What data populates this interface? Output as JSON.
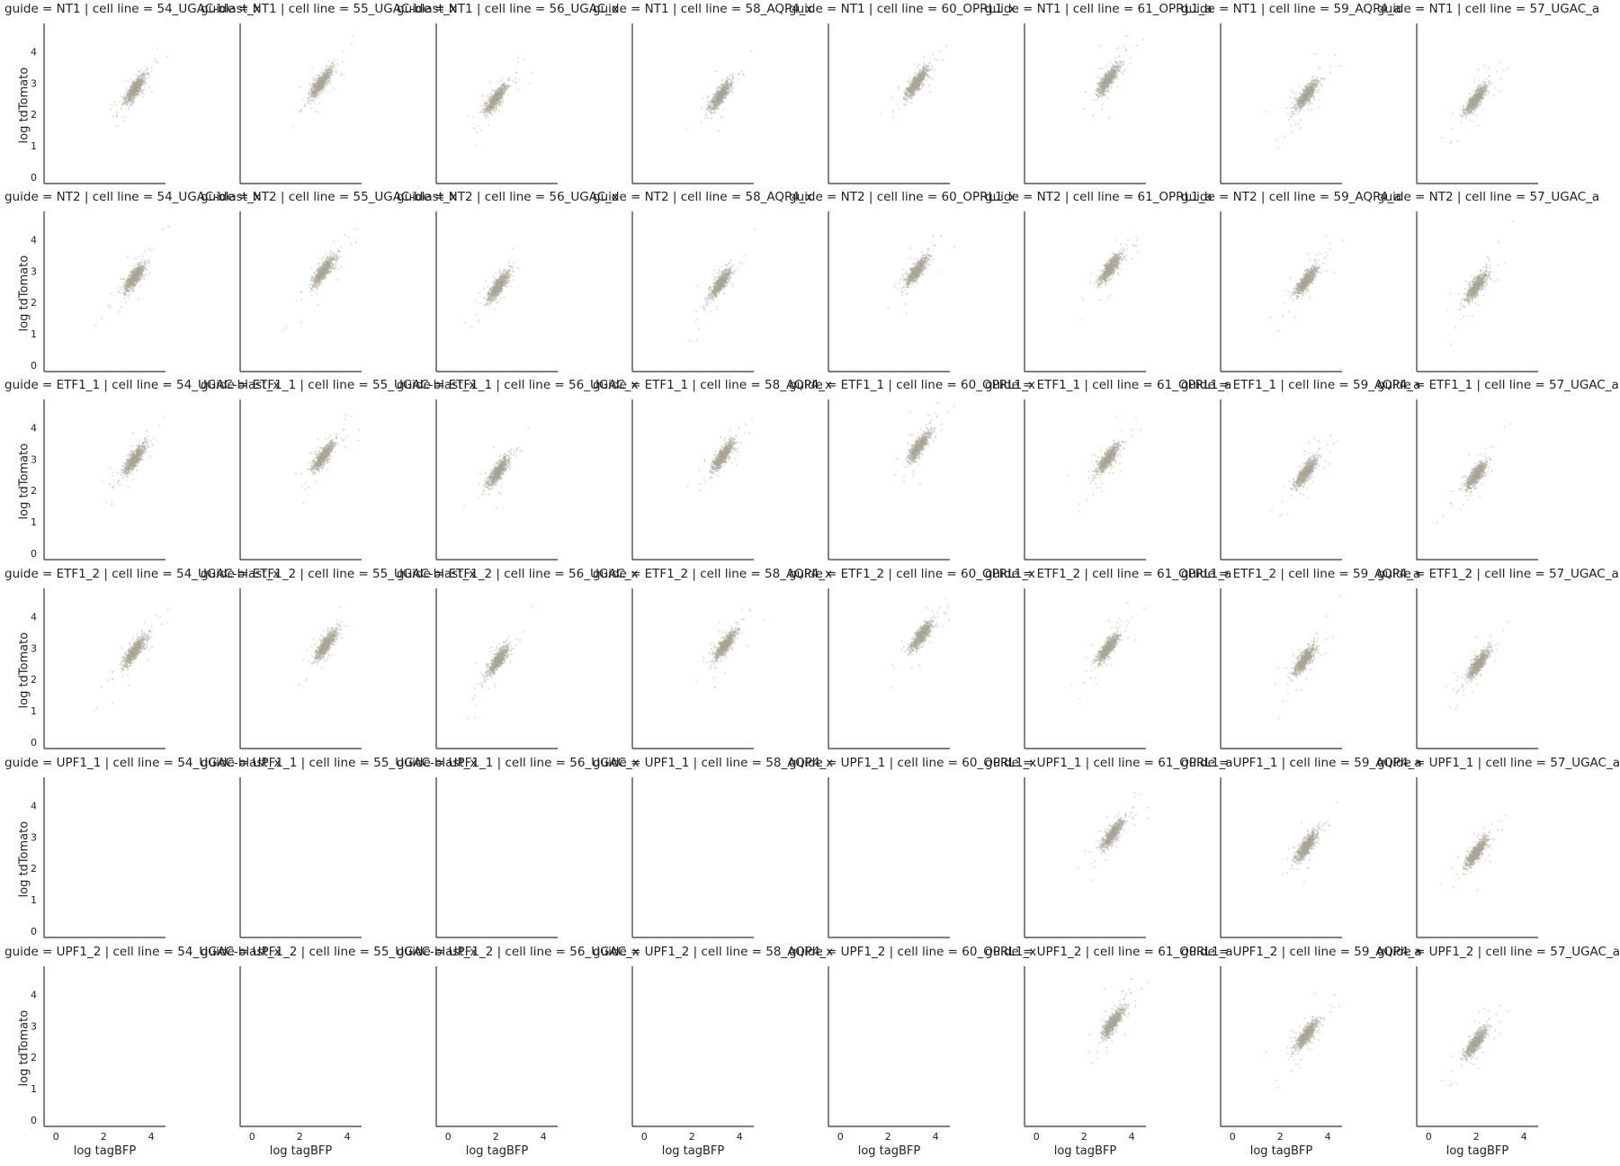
{
  "chart_data": {
    "type": "scatter",
    "row_facet": "guide",
    "col_facet": "cell line",
    "rows": [
      "NT1",
      "NT2",
      "ETF1_1",
      "ETF1_2",
      "UPF1_1",
      "UPF1_2"
    ],
    "cols": [
      "54_UGAC-blast_x",
      "55_UGAC-blast_x",
      "56_UGAC_x",
      "58_AQP4_x",
      "60_OPRL1_x",
      "61_OPRL1_a",
      "59_AQP4_a",
      "57_UGAC_a"
    ],
    "xlabel": "log tagBFP",
    "ylabel": "log tdTomato",
    "xlim": [
      -0.5,
      4.6
    ],
    "ylim": [
      -0.2,
      4.9
    ],
    "xticks": [
      0,
      2,
      4
    ],
    "yticks": [
      0,
      1,
      2,
      3,
      4
    ],
    "point_color": "#a8a597",
    "clusters_note": "per-panel point-cloud center (x, y) in log units; null = no data",
    "clusters": [
      [
        [
          3.3,
          2.8
        ],
        [
          2.9,
          3.0
        ],
        [
          2.0,
          2.5
        ],
        [
          3.2,
          2.6
        ],
        [
          3.2,
          3.0
        ],
        [
          3.0,
          3.1
        ],
        [
          3.1,
          2.6
        ],
        [
          2.0,
          2.5
        ]
      ],
      [
        [
          3.3,
          2.8
        ],
        [
          3.0,
          3.0
        ],
        [
          2.1,
          2.5
        ],
        [
          3.2,
          2.6
        ],
        [
          3.2,
          3.0
        ],
        [
          3.1,
          3.1
        ],
        [
          3.1,
          2.7
        ],
        [
          2.0,
          2.5
        ]
      ],
      [
        [
          3.3,
          3.0
        ],
        [
          3.0,
          3.1
        ],
        [
          2.1,
          2.6
        ],
        [
          3.3,
          3.1
        ],
        [
          3.3,
          3.4
        ],
        [
          3.0,
          3.0
        ],
        [
          3.1,
          2.6
        ],
        [
          2.0,
          2.5
        ]
      ],
      [
        [
          3.3,
          2.9
        ],
        [
          3.1,
          3.1
        ],
        [
          2.1,
          2.6
        ],
        [
          3.4,
          3.1
        ],
        [
          3.4,
          3.4
        ],
        [
          3.0,
          3.0
        ],
        [
          3.0,
          2.6
        ],
        [
          2.1,
          2.5
        ]
      ],
      [
        null,
        null,
        null,
        null,
        null,
        [
          3.2,
          3.1
        ],
        [
          3.1,
          2.7
        ],
        [
          2.0,
          2.5
        ]
      ],
      [
        null,
        null,
        null,
        null,
        null,
        [
          3.2,
          3.1
        ],
        [
          3.1,
          2.7
        ],
        [
          2.0,
          2.5
        ]
      ]
    ]
  },
  "labels": {
    "title_template": "guide = {r} | cell line = {c}"
  }
}
